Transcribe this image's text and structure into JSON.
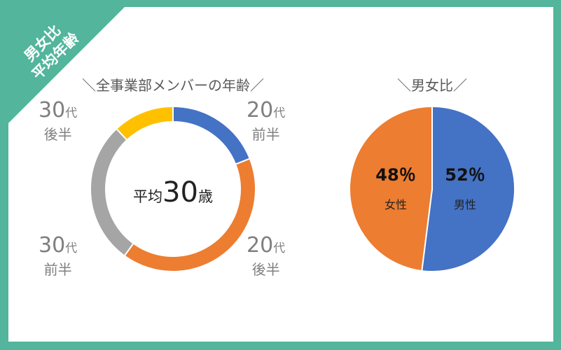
{
  "badge": {
    "line1": "男女比",
    "line2": "平均年齢"
  },
  "colors": {
    "background": "#52b59c",
    "blue": "#4472c4",
    "orange": "#ed7d31",
    "gray": "#a5a5a5",
    "yellow": "#ffc000"
  },
  "chart_data": [
    {
      "type": "pie",
      "variant": "donut",
      "title": "＼全事業部メンバーの年齢／",
      "center_label": {
        "prefix": "平均",
        "value": "30",
        "suffix": "歳"
      },
      "slices": [
        {
          "label_num": "20",
          "label_unit": "代",
          "label_sub": "前半",
          "value": 19,
          "color": "#4472c4"
        },
        {
          "label_num": "20",
          "label_unit": "代",
          "label_sub": "後半",
          "value": 41,
          "color": "#ed7d31"
        },
        {
          "label_num": "30",
          "label_unit": "代",
          "label_sub": "前半",
          "value": 28,
          "color": "#a5a5a5"
        },
        {
          "label_num": "30",
          "label_unit": "代",
          "label_sub": "後半",
          "value": 12,
          "color": "#ffc000"
        }
      ]
    },
    {
      "type": "pie",
      "title": "＼男女比／",
      "slices": [
        {
          "label": "男性",
          "value": 52,
          "display": "52％",
          "color": "#4472c4"
        },
        {
          "label": "女性",
          "value": 48,
          "display": "48％",
          "color": "#ed7d31"
        }
      ]
    }
  ]
}
